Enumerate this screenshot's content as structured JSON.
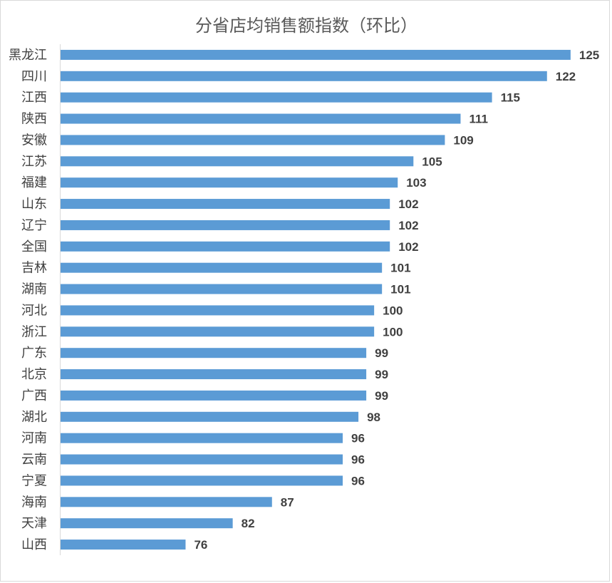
{
  "chart_data": {
    "type": "bar",
    "orientation": "horizontal",
    "title": "分省店均销售额指数（环比）",
    "categories": [
      "黑龙江",
      "四川",
      "江西",
      "陕西",
      "安徽",
      "江苏",
      "福建",
      "山东",
      "辽宁",
      "全国",
      "吉林",
      "湖南",
      "河北",
      "浙江",
      "广东",
      "北京",
      "广西",
      "湖北",
      "河南",
      "云南",
      "宁夏",
      "海南",
      "天津",
      "山西"
    ],
    "values": [
      125,
      122,
      115,
      111,
      109,
      105,
      103,
      102,
      102,
      102,
      101,
      101,
      100,
      100,
      99,
      99,
      99,
      98,
      96,
      96,
      96,
      87,
      82,
      76
    ],
    "xlim": [
      60,
      130
    ],
    "data_labels": true,
    "grid": false,
    "legend": "none",
    "bar_color": "#5B9BD5"
  }
}
